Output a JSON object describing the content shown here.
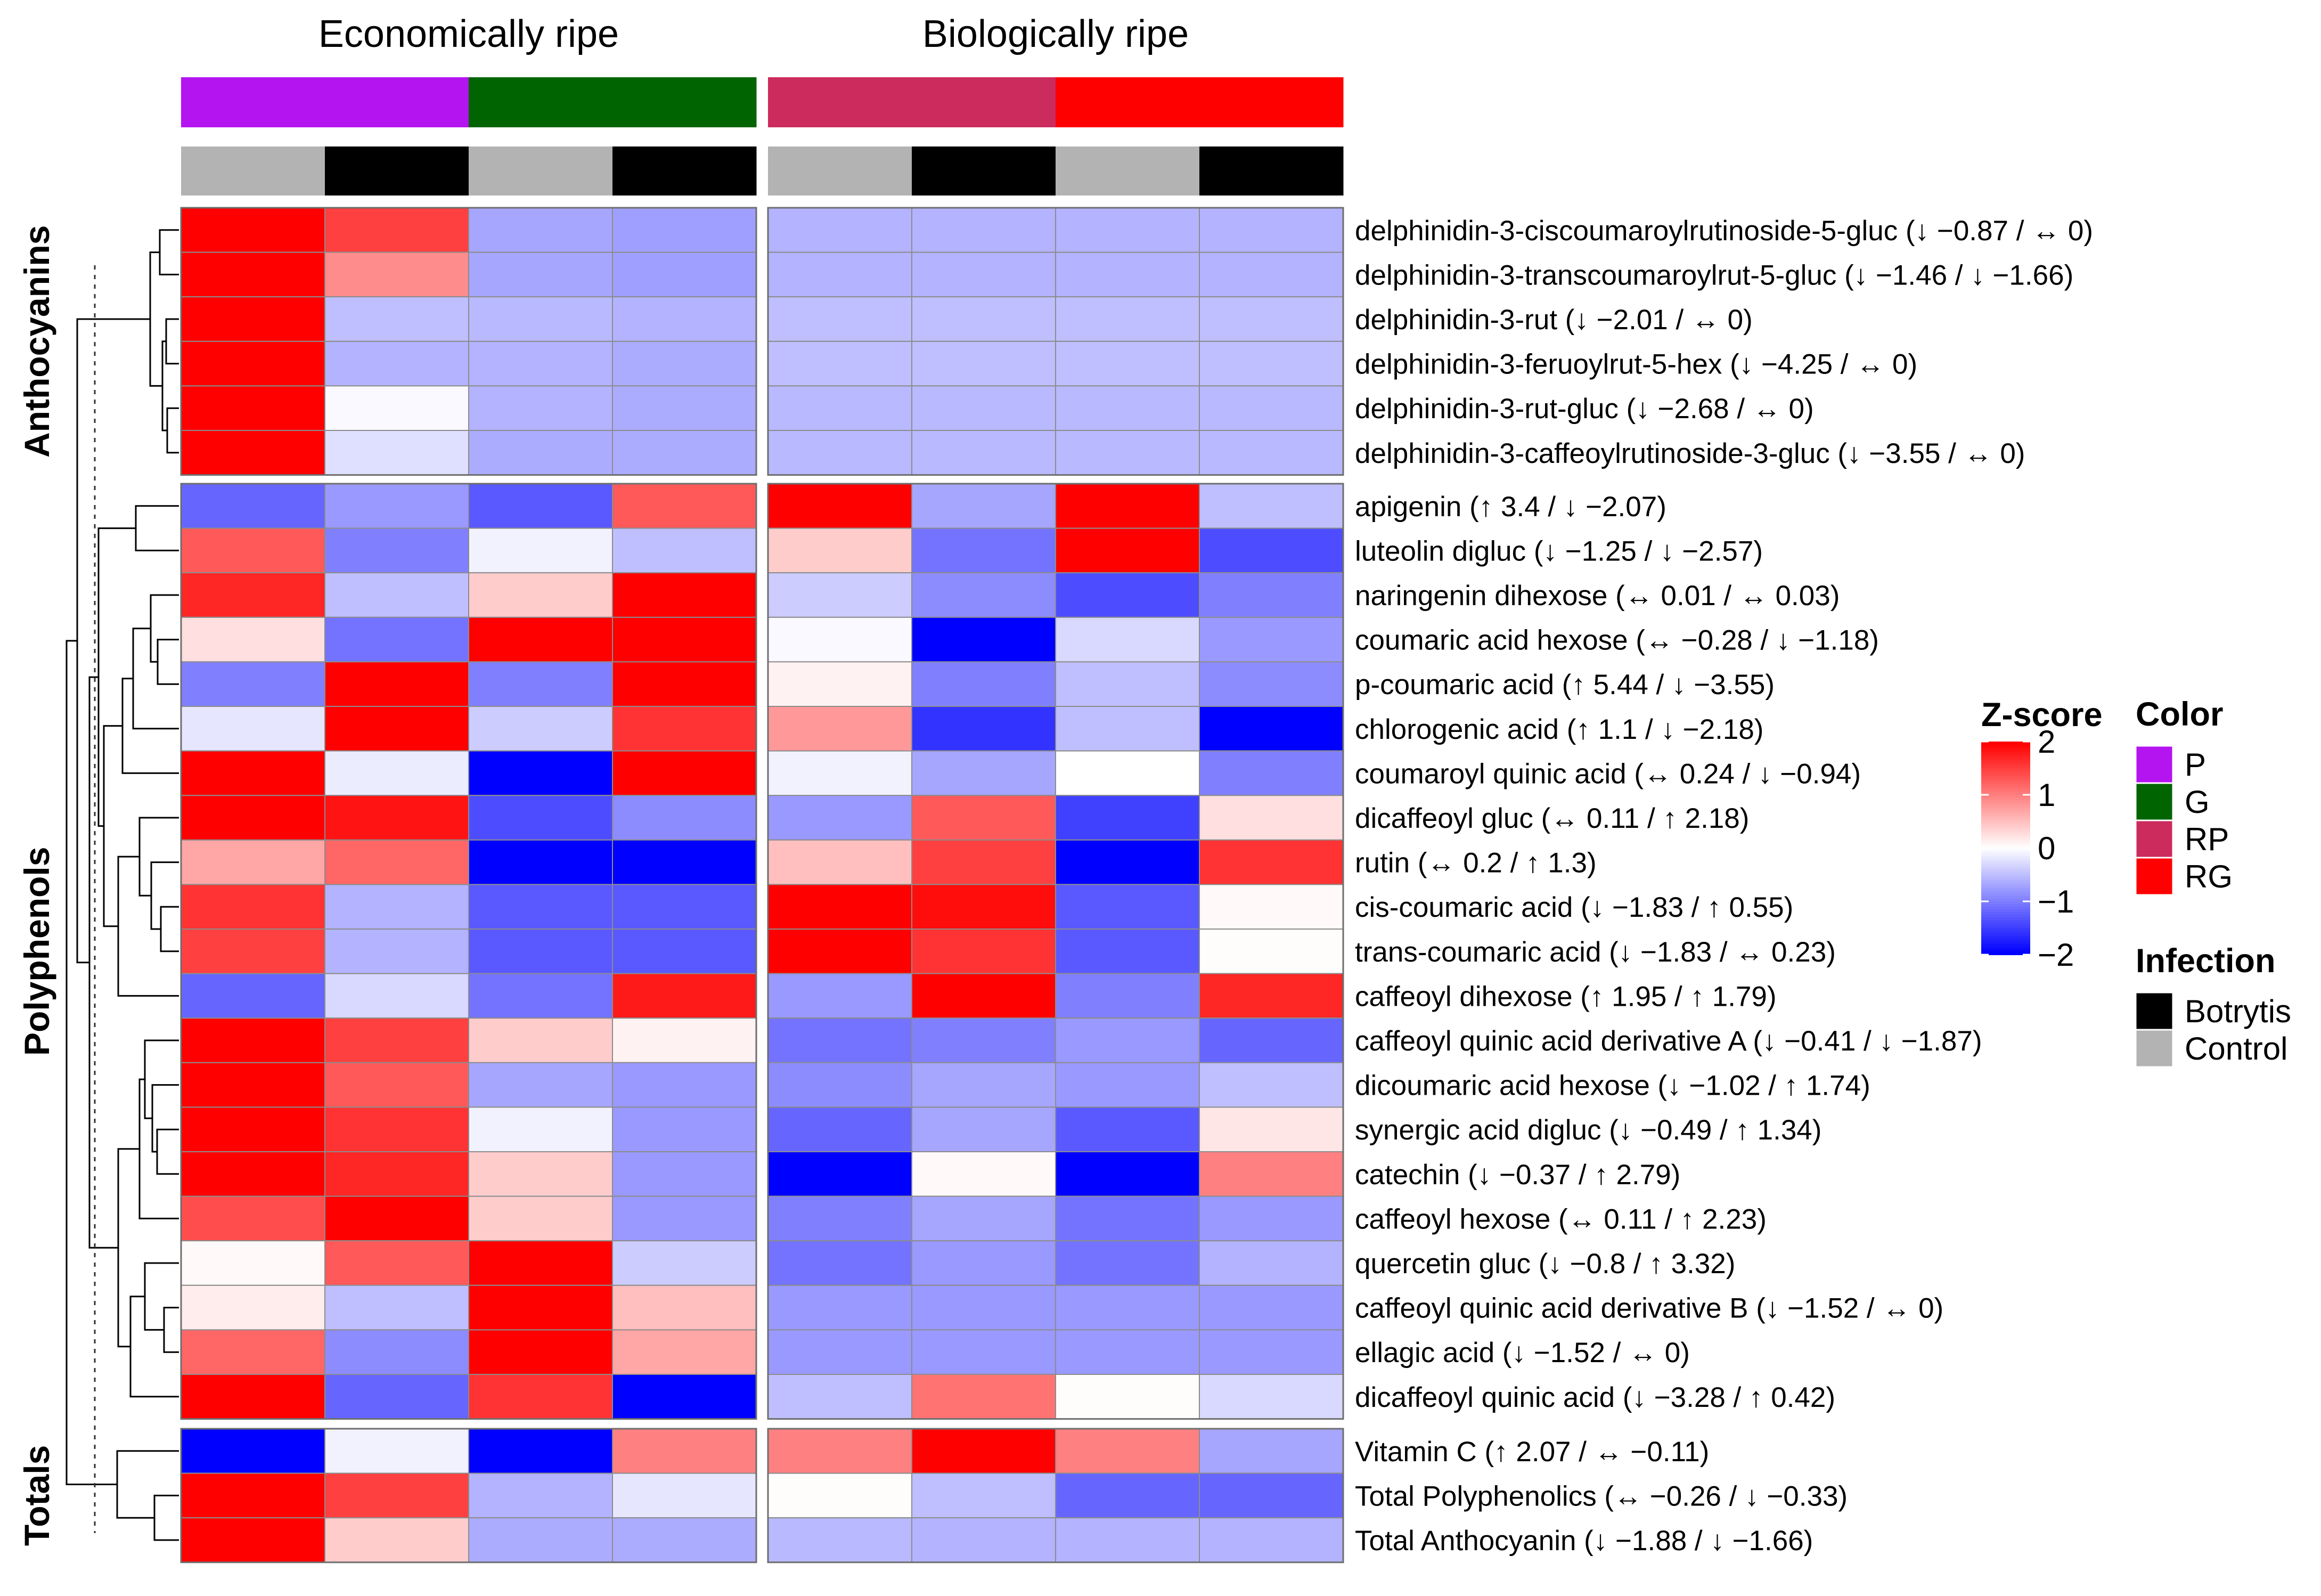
{
  "chart_data": {
    "type": "heatmap",
    "column_groups": [
      "Economically ripe",
      "Biologically ripe"
    ],
    "column_color": [
      "P",
      "P",
      "G",
      "G",
      "RP",
      "RP",
      "RG",
      "RG"
    ],
    "column_infection": [
      "Control",
      "Botrytis",
      "Control",
      "Botrytis",
      "Control",
      "Botrytis",
      "Control",
      "Botrytis"
    ],
    "sections": [
      {
        "name": "Anthocyanins",
        "rows": [
          {
            "label": "delphinidin-3-ciscoumaroylrutinoside-5-gluc (↓ −0.87 / ↔ 0)",
            "values": [
              2.2,
              1.5,
              -0.7,
              -0.75,
              -0.6,
              -0.6,
              -0.6,
              -0.6
            ]
          },
          {
            "label": "delphinidin-3-transcoumaroylrut-5-gluc (↓ −1.46 / ↓ −1.66)",
            "values": [
              2.2,
              0.9,
              -0.7,
              -0.75,
              -0.6,
              -0.6,
              -0.6,
              -0.6
            ]
          },
          {
            "label": "delphinidin-3-rut (↓ −2.01 / ↔ 0)",
            "values": [
              2.2,
              -0.5,
              -0.55,
              -0.6,
              -0.5,
              -0.5,
              -0.5,
              -0.5
            ]
          },
          {
            "label": "delphinidin-3-feruoylrut-5-hex (↓ −4.25 / ↔ 0)",
            "values": [
              2.2,
              -0.6,
              -0.6,
              -0.65,
              -0.5,
              -0.5,
              -0.5,
              -0.5
            ]
          },
          {
            "label": "delphinidin-3-rut-gluc (↓ −2.68 / ↔ 0)",
            "values": [
              2.2,
              -0.05,
              -0.6,
              -0.65,
              -0.55,
              -0.55,
              -0.55,
              -0.55
            ]
          },
          {
            "label": "delphinidin-3-caffeoylrutinoside-3-gluc (↓ −3.55 / ↔ 0)",
            "values": [
              2.2,
              -0.25,
              -0.65,
              -0.65,
              -0.55,
              -0.55,
              -0.55,
              -0.55
            ]
          }
        ]
      },
      {
        "name": "Polyphenols",
        "rows": [
          {
            "label": "apigenin (↑ 3.4 / ↓ −2.07)",
            "values": [
              -1.2,
              -0.8,
              -1.3,
              1.3,
              2.1,
              -0.7,
              2.1,
              -0.5
            ]
          },
          {
            "label": "luteolin digluc (↓ −1.25 / ↓ −2.57)",
            "values": [
              1.3,
              -1.0,
              -0.1,
              -0.5,
              0.4,
              -1.1,
              2.1,
              -1.4
            ]
          },
          {
            "label": "naringenin dihexose (↔ 0.01 / ↔ 0.03)",
            "values": [
              1.7,
              -0.5,
              0.4,
              2.1,
              -0.4,
              -0.9,
              -1.4,
              -1.0
            ]
          },
          {
            "label": "coumaric acid hexose (↔ −0.28 / ↓ −1.18)",
            "values": [
              0.25,
              -1.1,
              2.0,
              2.1,
              -0.05,
              -2.1,
              -0.3,
              -0.8
            ]
          },
          {
            "label": "p-coumaric acid (↑ 5.44 / ↓ −3.55)",
            "values": [
              -1.0,
              2.1,
              -1.0,
              2.1,
              0.1,
              -1.0,
              -0.5,
              -0.9
            ]
          },
          {
            "label": "chlorogenic acid (↑ 1.1 / ↓ −2.18)",
            "values": [
              -0.2,
              2.1,
              -0.4,
              1.6,
              0.8,
              -1.6,
              -0.5,
              -2.1
            ]
          },
          {
            "label": "coumaroyl quinic acid (↔ 0.24 / ↓ −0.94)",
            "values": [
              2.1,
              -0.15,
              -2.1,
              2.1,
              -0.1,
              -0.7,
              0.0,
              -1.0
            ]
          },
          {
            "label": "dicaffeoyl gluc (↔ 0.11 / ↑ 2.18)",
            "values": [
              2.1,
              1.85,
              -1.4,
              -0.9,
              -0.8,
              1.3,
              -1.5,
              0.25
            ]
          },
          {
            "label": "rutin (↔ 0.2 / ↑ 1.3)",
            "values": [
              0.7,
              1.2,
              -2.1,
              -2.0,
              0.5,
              1.5,
              -2.1,
              1.6
            ]
          },
          {
            "label": "cis-coumaric acid (↓ −1.83 / ↑ 0.55)",
            "values": [
              1.6,
              -0.6,
              -1.3,
              -1.3,
              2.1,
              1.9,
              -1.3,
              0.05
            ]
          },
          {
            "label": "trans-coumaric acid (↓ −1.83 / ↔ 0.23)",
            "values": [
              1.5,
              -0.6,
              -1.3,
              -1.3,
              2.0,
              1.6,
              -1.3,
              0.02
            ]
          },
          {
            "label": "caffeoyl dihexose (↑ 1.95 / ↑ 1.79)",
            "values": [
              -1.2,
              -0.3,
              -1.1,
              1.8,
              -0.8,
              2.1,
              -1.0,
              1.7
            ]
          },
          {
            "label": "caffeoyl quinic acid derivative A (↓ −0.41 / ↓ −1.87)",
            "values": [
              2.1,
              1.5,
              0.4,
              0.1,
              -1.1,
              -1.0,
              -0.8,
              -1.2
            ]
          },
          {
            "label": "dicoumaric acid hexose (↓ −1.02 / ↑ 1.74)",
            "values": [
              2.1,
              1.3,
              -0.7,
              -0.8,
              -0.9,
              -0.7,
              -0.8,
              -0.5
            ]
          },
          {
            "label": "synergic acid digluc (↓ −0.49 / ↑ 1.34)",
            "values": [
              2.1,
              1.6,
              -0.1,
              -0.8,
              -1.2,
              -0.7,
              -1.3,
              0.2
            ]
          },
          {
            "label": "catechin (↓ −0.37 / ↑ 2.79)",
            "values": [
              2.1,
              1.7,
              0.4,
              -0.8,
              -2.1,
              0.05,
              -2.1,
              1.0
            ]
          },
          {
            "label": "caffeoyl hexose (↔ 0.11 / ↑ 2.23)",
            "values": [
              1.4,
              2.1,
              0.4,
              -0.8,
              -1.0,
              -0.7,
              -1.1,
              -0.8
            ]
          },
          {
            "label": "quercetin gluc (↓ −0.8 / ↑ 3.32)",
            "values": [
              0.05,
              1.3,
              2.1,
              -0.4,
              -1.1,
              -0.8,
              -1.1,
              -0.6
            ]
          },
          {
            "label": "caffeoyl quinic acid derivative B (↓ −1.52 / ↔ 0)",
            "values": [
              0.15,
              -0.5,
              2.1,
              0.5,
              -0.8,
              -0.8,
              -0.8,
              -0.8
            ]
          },
          {
            "label": "ellagic acid (↓ −1.52 / ↔ 0)",
            "values": [
              1.2,
              -0.9,
              2.1,
              0.7,
              -0.8,
              -0.8,
              -0.8,
              -0.8
            ]
          },
          {
            "label": "dicaffeoyl quinic acid (↓ −3.28 / ↑ 0.42)",
            "values": [
              2.0,
              -1.2,
              1.6,
              -2.1,
              -0.5,
              1.1,
              0.02,
              -0.3
            ]
          }
        ]
      },
      {
        "name": "Totals",
        "rows": [
          {
            "label": "Vitamin C (↑ 2.07 / ↔ −0.11)",
            "values": [
              -2.1,
              -0.1,
              -2.1,
              1.0,
              1.0,
              2.1,
              1.0,
              -0.7
            ]
          },
          {
            "label": "Total Polyphenolics (↔ −0.26 / ↓ −0.33)",
            "values": [
              2.1,
              1.5,
              -0.6,
              -0.2,
              0.02,
              -0.5,
              -1.2,
              -1.2
            ]
          },
          {
            "label": "Total Anthocyanin (↓ −1.88 / ↓ −1.66)",
            "values": [
              2.1,
              0.4,
              -0.65,
              -0.65,
              -0.55,
              -0.6,
              -0.6,
              -0.6
            ]
          }
        ]
      }
    ],
    "colorbar": {
      "title": "Z-score",
      "range": [
        -2,
        2
      ],
      "ticks": [
        "2",
        "1",
        "0",
        "−1",
        "−2"
      ],
      "tick_values": [
        2,
        1,
        0,
        -1,
        -2
      ]
    },
    "legends": [
      {
        "title": "Color",
        "entries": [
          {
            "label": "P",
            "color": "#B414F0"
          },
          {
            "label": "G",
            "color": "#006400"
          },
          {
            "label": "RP",
            "color": "#CC2B5E"
          },
          {
            "label": "RG",
            "color": "#FF0000"
          }
        ]
      },
      {
        "title": "Infection",
        "entries": [
          {
            "label": "Botrytis",
            "color": "#000000"
          },
          {
            "label": "Control",
            "color": "#B3B3B3"
          }
        ]
      }
    ],
    "annotation_colors": {
      "P": "#B414F0",
      "G": "#006400",
      "RP": "#CC2B5E",
      "RG": "#FF0000",
      "Control": "#B3B3B3",
      "Botrytis": "#000000"
    },
    "scale_colors": {
      "low": "#0000FF",
      "mid": "#FFFFFF",
      "high": "#FF0000"
    }
  }
}
